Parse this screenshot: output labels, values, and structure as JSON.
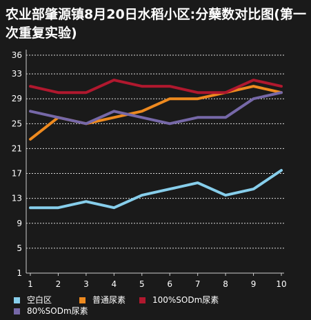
{
  "title": "农业部肇源镇8月20日水稻小区:分蘖数对比图(第一次重复实验)",
  "chart_data": {
    "type": "line",
    "title": "农业部肇源镇8月20日水稻小区:分蘖数对比图(第一次重复实验)",
    "x": [
      1,
      2,
      3,
      4,
      5,
      6,
      7,
      8,
      9,
      10
    ],
    "yticks": [
      1,
      5,
      9,
      13,
      17,
      21,
      25,
      29,
      33,
      36
    ],
    "ylim": [
      1,
      36
    ],
    "grid": true,
    "legend_position": "bottom",
    "series": [
      {
        "name": "空白区",
        "color": "#87ceeb",
        "values": [
          11.5,
          11.5,
          12.5,
          11.5,
          13.5,
          14.5,
          15.5,
          13.5,
          14.5,
          17.5
        ]
      },
      {
        "name": "普通尿素",
        "color": "#ee8a1f",
        "values": [
          22.5,
          26,
          25,
          26,
          27,
          29,
          29,
          30,
          31,
          30
        ]
      },
      {
        "name": "100%SODm尿素",
        "color": "#b0182e",
        "values": [
          31,
          30,
          30,
          32,
          31,
          31,
          30,
          30,
          32,
          31
        ]
      },
      {
        "name": "80%SODm尿素",
        "color": "#7668a8",
        "values": [
          27,
          26,
          25,
          27,
          26,
          25,
          26,
          26,
          29,
          30
        ]
      }
    ]
  }
}
